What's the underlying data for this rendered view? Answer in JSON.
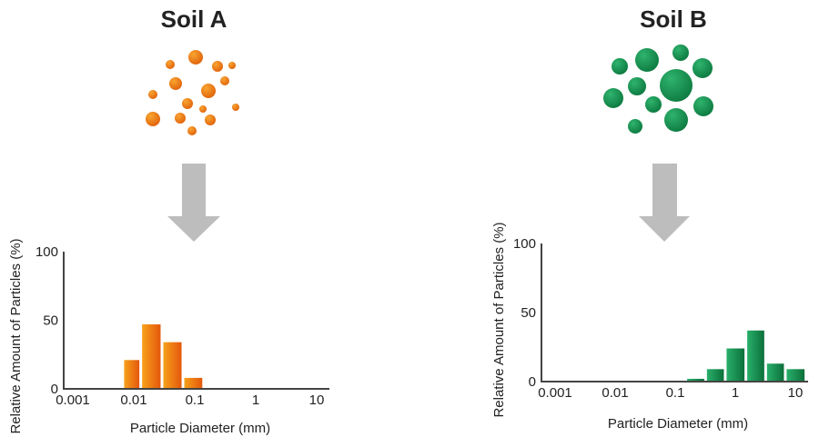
{
  "colors": {
    "soil_a": "#ee6a0c",
    "soil_b": "#138a4c",
    "arrow": "#bdbdbd",
    "axis": "#444444"
  },
  "chart_data": [
    {
      "type": "bar",
      "title": "Soil A",
      "xlabel": "Particle Diameter (mm)",
      "ylabel": "Relative Amount of Particles (%)",
      "xscale": "log",
      "xlim": [
        0.001,
        10
      ],
      "ylim": [
        0,
        100
      ],
      "xticks": [
        "0.001",
        "0.01",
        "0.1",
        "1",
        "10"
      ],
      "yticks": [
        "0",
        "50",
        "100"
      ],
      "bin_edges": [
        0.0066,
        0.013,
        0.029,
        0.064,
        0.14
      ],
      "values": [
        21,
        47,
        34,
        8
      ]
    },
    {
      "type": "bar",
      "title": "Soil B",
      "xlabel": "Particle Diameter (mm)",
      "ylabel": "Relative Amount of Particles (%)",
      "xscale": "log",
      "xlim": [
        0.001,
        10
      ],
      "ylim": [
        0,
        100
      ],
      "xticks": [
        "0.001",
        "0.01",
        "0.1",
        "1",
        "10"
      ],
      "yticks": [
        "0",
        "50",
        "100"
      ],
      "bin_edges": [
        0.15,
        0.32,
        0.68,
        1.5,
        3.2,
        6.8,
        15
      ],
      "values": [
        2,
        9,
        24,
        37,
        13,
        9
      ]
    }
  ]
}
